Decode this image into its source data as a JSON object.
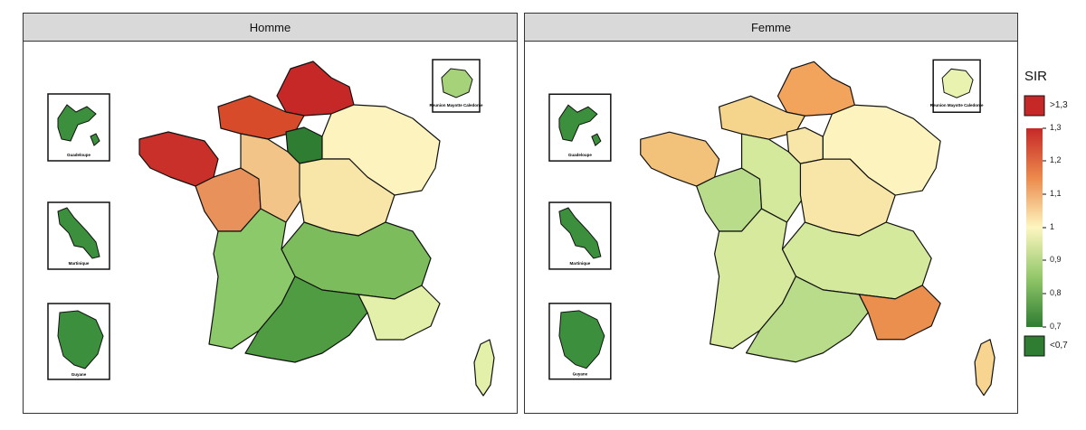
{
  "panels": [
    {
      "title": "Homme",
      "insets": {
        "guadeloupe": "Guadeloupe",
        "martinique": "Martinique",
        "guyane": "Guyane",
        "reunion": "Reunion Mayotte Caledonie"
      },
      "colors": {
        "nord": "#c62828",
        "normandie": "#d84b2a",
        "bretagne": "#c9302a",
        "paysloire": "#e8915a",
        "idf": "#2e7d32",
        "centre": "#f2c488",
        "bourgogne": "#f7e6a8",
        "grandest": "#fdf3bf",
        "alpes": "#7cbc5c",
        "aquitaine": "#8cc96a",
        "occitanie": "#4f9c43",
        "paca": "#e3f0a9",
        "corse": "#e3f0a9",
        "guadeloupe": "#3c8f3c",
        "martinique": "#3c8f3c",
        "guyane": "#3c8f3c",
        "reunion": "#a6d27a"
      }
    },
    {
      "title": "Femme",
      "insets": {
        "guadeloupe": "Guadeloupe",
        "martinique": "Martinique",
        "guyane": "Guyane",
        "reunion": "Reunion Mayotte Caledonie"
      },
      "colors": {
        "nord": "#f2a35c",
        "normandie": "#f5d48c",
        "bretagne": "#f2c27a",
        "paysloire": "#b9dc8a",
        "idf": "#f7e6a8",
        "centre": "#d4e99b",
        "bourgogne": "#f7e6a8",
        "grandest": "#fdf3bf",
        "alpes": "#d4e99b",
        "aquitaine": "#d6e99c",
        "occitanie": "#b9dc8a",
        "paca": "#eb8f4f",
        "corse": "#f7d48f",
        "guadeloupe": "#3c8f3c",
        "martinique": "#3c8f3c",
        "guyane": "#3c8f3c",
        "reunion": "#eaf2b0"
      }
    }
  ],
  "legend": {
    "title": "SIR",
    "high_label": ">1,3",
    "low_label": "<0,7",
    "high_color": "#c62828",
    "low_color": "#2e7d32",
    "ticks": [
      "1,3",
      "1,2",
      "1,1",
      "1",
      "0,9",
      "0,8",
      "0,7"
    ]
  }
}
